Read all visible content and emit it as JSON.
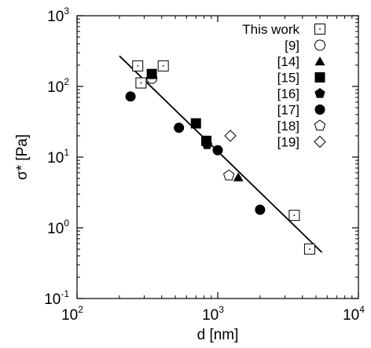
{
  "chart_data": {
    "type": "scatter",
    "title": "",
    "xlabel": "d [nm]",
    "ylabel": "σ* [Pa]",
    "xscale": "log",
    "yscale": "log",
    "xlim": [
      100,
      10000
    ],
    "ylim": [
      0.1,
      1000
    ],
    "grid": false,
    "legend_position": "top-right",
    "x_ticks": [
      {
        "value": 100,
        "base": "10",
        "exp": "2"
      },
      {
        "value": 1000,
        "base": "10",
        "exp": "3"
      },
      {
        "value": 10000,
        "base": "10",
        "exp": "4"
      }
    ],
    "y_ticks": [
      {
        "value": 0.1,
        "base": "10",
        "exp": "-1"
      },
      {
        "value": 1,
        "base": "10",
        "exp": "0"
      },
      {
        "value": 10,
        "base": "10",
        "exp": "1"
      },
      {
        "value": 100,
        "base": "10",
        "exp": "2"
      },
      {
        "value": 1000,
        "base": "10",
        "exp": "3"
      }
    ],
    "series": [
      {
        "name": "This work",
        "marker": "square-dot",
        "points": [
          [
            270,
            195
          ],
          [
            285,
            112
          ],
          [
            410,
            195
          ],
          [
            3500,
            1.5
          ],
          [
            4500,
            0.5
          ]
        ]
      },
      {
        "name": "[9]",
        "marker": "circle-open",
        "points": [
          [
            340,
            130
          ]
        ]
      },
      {
        "name": "[14]",
        "marker": "triangle-filled",
        "points": [
          [
            1400,
            5.2
          ]
        ]
      },
      {
        "name": "[15]",
        "marker": "square-filled",
        "points": [
          [
            340,
            150
          ],
          [
            700,
            30
          ],
          [
            830,
            17
          ]
        ]
      },
      {
        "name": "[16]",
        "marker": "pentagon-filled",
        "points": [
          [
            840,
            15
          ]
        ]
      },
      {
        "name": "[17]",
        "marker": "circle-filled",
        "points": [
          [
            240,
            72
          ],
          [
            530,
            26
          ],
          [
            1000,
            12.5
          ],
          [
            2000,
            1.8
          ]
        ]
      },
      {
        "name": "[18]",
        "marker": "pentagon-open",
        "points": [
          [
            1200,
            5.5
          ]
        ]
      },
      {
        "name": "[19]",
        "marker": "diamond-open",
        "points": [
          [
            1230,
            20
          ]
        ]
      }
    ],
    "fit_line": {
      "points": [
        [
          200,
          270
        ],
        [
          5500,
          0.45
        ]
      ]
    }
  }
}
